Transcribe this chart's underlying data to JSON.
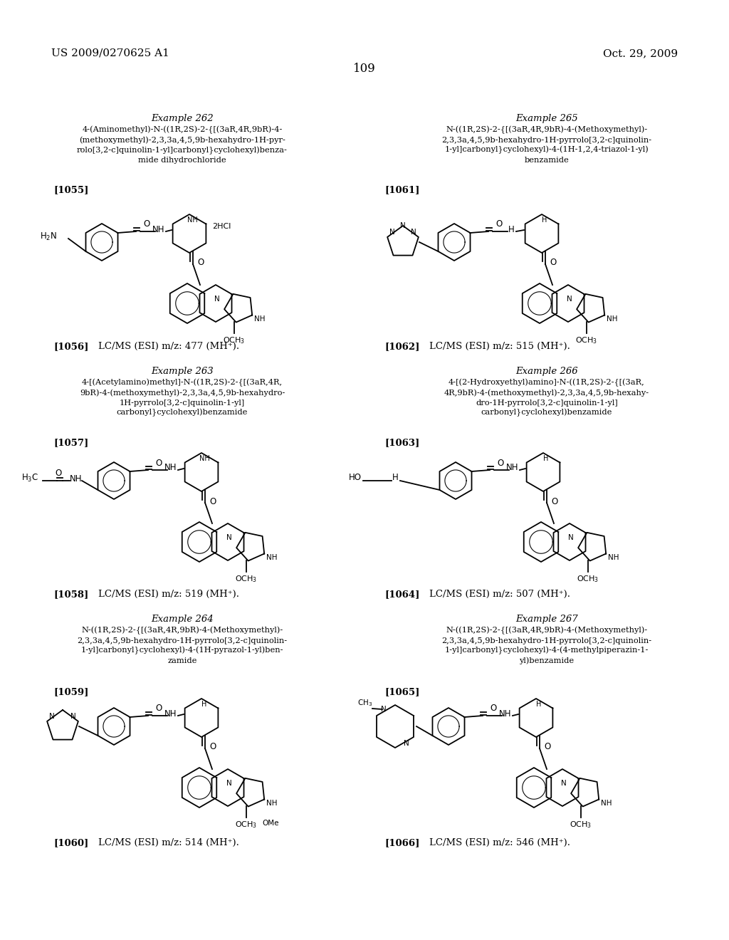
{
  "background_color": "#ffffff",
  "header_left": "US 2009/0270625 A1",
  "header_right": "Oct. 29, 2009",
  "page_number": "109",
  "header_font_size": 11,
  "page_number_font_size": 12
}
